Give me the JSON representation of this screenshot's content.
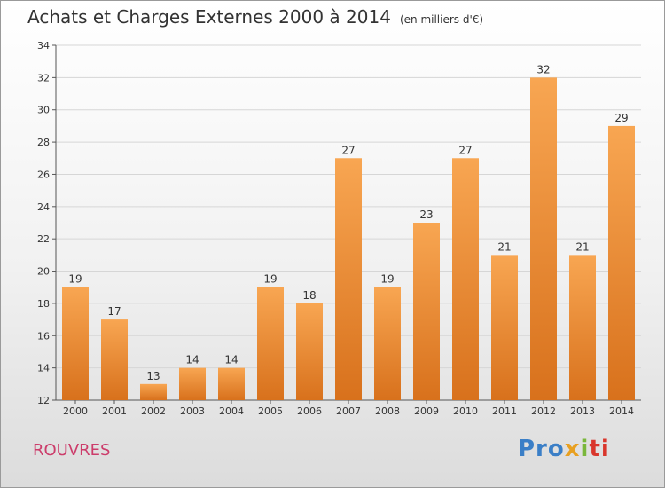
{
  "title": "Achats et Charges Externes 2000 à 2014",
  "unit": "(en milliers d'€)",
  "commune": "ROUVRES",
  "logo": {
    "p1": "Pro",
    "p2": "x",
    "p3": "i",
    "p4": "ti"
  },
  "chart_data": {
    "type": "bar",
    "categories": [
      "2000",
      "2001",
      "2002",
      "2003",
      "2004",
      "2005",
      "2006",
      "2007",
      "2008",
      "2009",
      "2010",
      "2011",
      "2012",
      "2013",
      "2014"
    ],
    "values": [
      19,
      17,
      13,
      14,
      14,
      19,
      18,
      27,
      19,
      23,
      27,
      21,
      32,
      21,
      29
    ],
    "ylim": [
      12,
      34
    ],
    "yticks": [
      12,
      14,
      16,
      18,
      20,
      22,
      24,
      26,
      28,
      30,
      32,
      34
    ],
    "grid": true,
    "bar_color": "#f0923a"
  }
}
